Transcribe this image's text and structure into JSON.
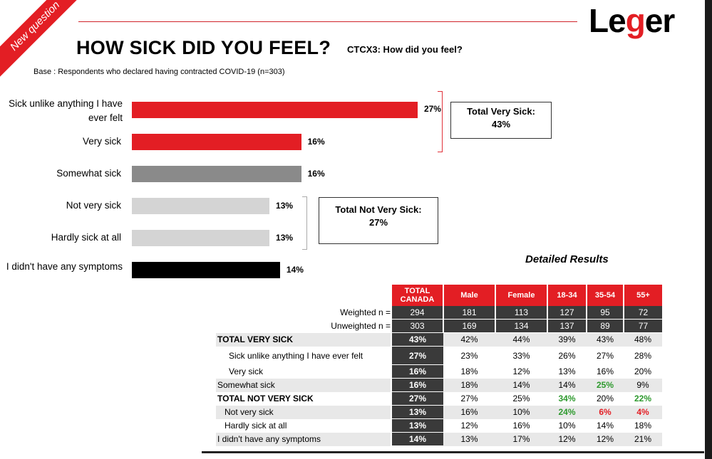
{
  "ribbon": "New question",
  "title": "HOW SICK DID YOU FEEL?",
  "question_code": "CTCX3: How did you feel?",
  "base": "Base : Respondents who declared having contracted COVID-19 (n=303)",
  "logo": {
    "part1": "Le",
    "part2": "g",
    "part3": "er"
  },
  "colors": {
    "red": "#e31e24",
    "grey_dark": "#8a8a8a",
    "grey_light": "#d4d4d4",
    "black": "#000000"
  },
  "chart_data": {
    "type": "bar",
    "orientation": "horizontal",
    "categories": [
      "Sick unlike anything I have ever felt",
      "Very sick",
      "Somewhat sick",
      "Not very sick",
      "Hardly sick at all",
      "I didn't have any symptoms"
    ],
    "values": [
      27,
      16,
      16,
      13,
      13,
      14
    ],
    "value_labels": [
      "27%",
      "16%",
      "16%",
      "13%",
      "13%",
      "14%"
    ],
    "bar_colors": [
      "#e31e24",
      "#e31e24",
      "#8a8a8a",
      "#d4d4d4",
      "#d4d4d4",
      "#000000"
    ],
    "xlim": [
      0,
      30
    ],
    "grid": false
  },
  "totals": {
    "very_sick": {
      "label": "Total Very Sick:",
      "value": "43%"
    },
    "not_very_sick": {
      "label": "Total Not Very Sick:",
      "value": "27%"
    }
  },
  "detailed": {
    "title": "Detailed Results",
    "columns": [
      "TOTAL CANADA",
      "Male",
      "Female",
      "18-34",
      "35-54",
      "55+"
    ],
    "weighted": {
      "label": "Weighted n =",
      "values": [
        "294",
        "181",
        "113",
        "127",
        "95",
        "72"
      ]
    },
    "unweighted": {
      "label": "Unweighted n =",
      "values": [
        "303",
        "169",
        "134",
        "137",
        "89",
        "77"
      ]
    },
    "rows": [
      {
        "label": "TOTAL VERY SICK",
        "values": [
          "43%",
          "42%",
          "44%",
          "39%",
          "43%",
          "48%"
        ]
      },
      {
        "label": "Sick unlike anything I have ever felt",
        "values": [
          "27%",
          "23%",
          "33%",
          "26%",
          "27%",
          "28%"
        ]
      },
      {
        "label": "Very sick",
        "values": [
          "16%",
          "18%",
          "12%",
          "13%",
          "16%",
          "20%"
        ]
      },
      {
        "label": "Somewhat sick",
        "values": [
          "16%",
          "18%",
          "14%",
          "14%",
          "25%",
          "9%"
        ]
      },
      {
        "label": "TOTAL NOT VERY SICK",
        "values": [
          "27%",
          "27%",
          "25%",
          "34%",
          "20%",
          "22%"
        ]
      },
      {
        "label": "Not very sick",
        "values": [
          "13%",
          "16%",
          "10%",
          "24%",
          "6%",
          "4%"
        ]
      },
      {
        "label": "Hardly sick at all",
        "values": [
          "13%",
          "12%",
          "16%",
          "10%",
          "14%",
          "18%"
        ]
      },
      {
        "label": "I didn't have any symptoms",
        "values": [
          "14%",
          "13%",
          "17%",
          "12%",
          "12%",
          "21%"
        ]
      }
    ]
  }
}
